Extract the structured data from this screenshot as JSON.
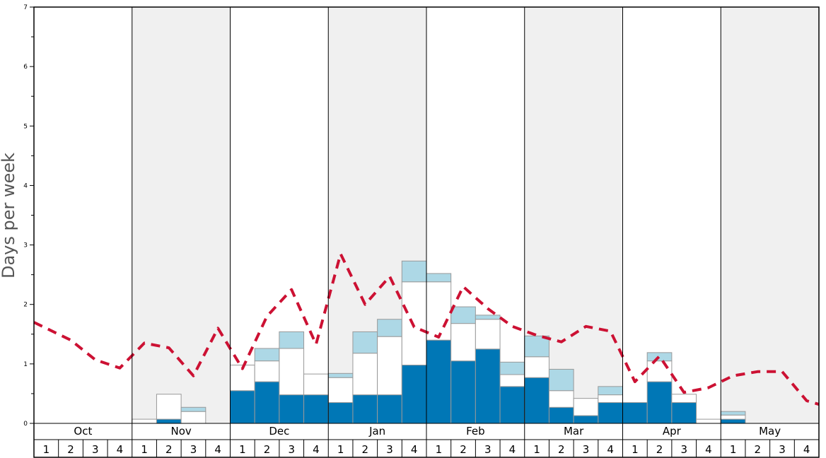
{
  "chart_data": {
    "type": "bar",
    "ylabel": "Days per week",
    "ylim": [
      0,
      7
    ],
    "y_ticks": [
      "0",
      "1",
      "2",
      "3",
      "4",
      "5",
      "6",
      "7"
    ],
    "months": [
      "Oct",
      "Nov",
      "Dec",
      "Jan",
      "Feb",
      "Mar",
      "Apr",
      "May"
    ],
    "week_labels": [
      "1",
      "2",
      "3",
      "4"
    ],
    "grid": false,
    "colors": {
      "dark_segment": "#0077b6",
      "white_segment": "#ffffff",
      "light_segment": "#add8e6",
      "line": "#cc1133",
      "shade_band": "#f0f0f0"
    },
    "series": [
      {
        "values": [
          0,
          0,
          0,
          0,
          0,
          0.07,
          0,
          0,
          0.55,
          0.7,
          0.48,
          0.48,
          0.35,
          0.48,
          0.48,
          0.98,
          1.4,
          1.05,
          1.25,
          0.62,
          0.77,
          0.27,
          0.13,
          0.35,
          0.35,
          0.7,
          0.35,
          0,
          0.07,
          0,
          0,
          0,
          0
        ]
      },
      {
        "values": [
          0,
          0,
          0,
          0,
          0.07,
          0.42,
          0.2,
          0,
          0.43,
          0.35,
          0.78,
          0.35,
          0.42,
          0.7,
          0.98,
          1.4,
          0.98,
          0.63,
          0.5,
          0.2,
          0.35,
          0.28,
          0.29,
          0.13,
          0,
          0.35,
          0.14,
          0.07,
          0.07,
          0,
          0,
          0,
          0
        ]
      },
      {
        "values": [
          0,
          0,
          0,
          0,
          0,
          0,
          0.07,
          0,
          0,
          0.21,
          0.28,
          0,
          0.07,
          0.36,
          0.29,
          0.35,
          0.14,
          0.28,
          0.07,
          0.21,
          0.35,
          0.36,
          0,
          0.14,
          0,
          0.14,
          0,
          0,
          0.06,
          0,
          0,
          0,
          0
        ]
      },
      {
        "type": "line",
        "style": "dashed",
        "values": [
          1.7,
          1.4,
          1.07,
          0.93,
          1.35,
          1.27,
          0.8,
          1.6,
          0.92,
          1.8,
          2.25,
          1.33,
          2.85,
          2.0,
          2.47,
          1.62,
          1.45,
          2.3,
          1.93,
          1.63,
          1.48,
          1.37,
          1.63,
          1.55,
          0.7,
          1.13,
          0.52,
          0.6,
          0.8,
          0.87,
          0.87,
          0.38,
          0.32
        ]
      }
    ]
  }
}
